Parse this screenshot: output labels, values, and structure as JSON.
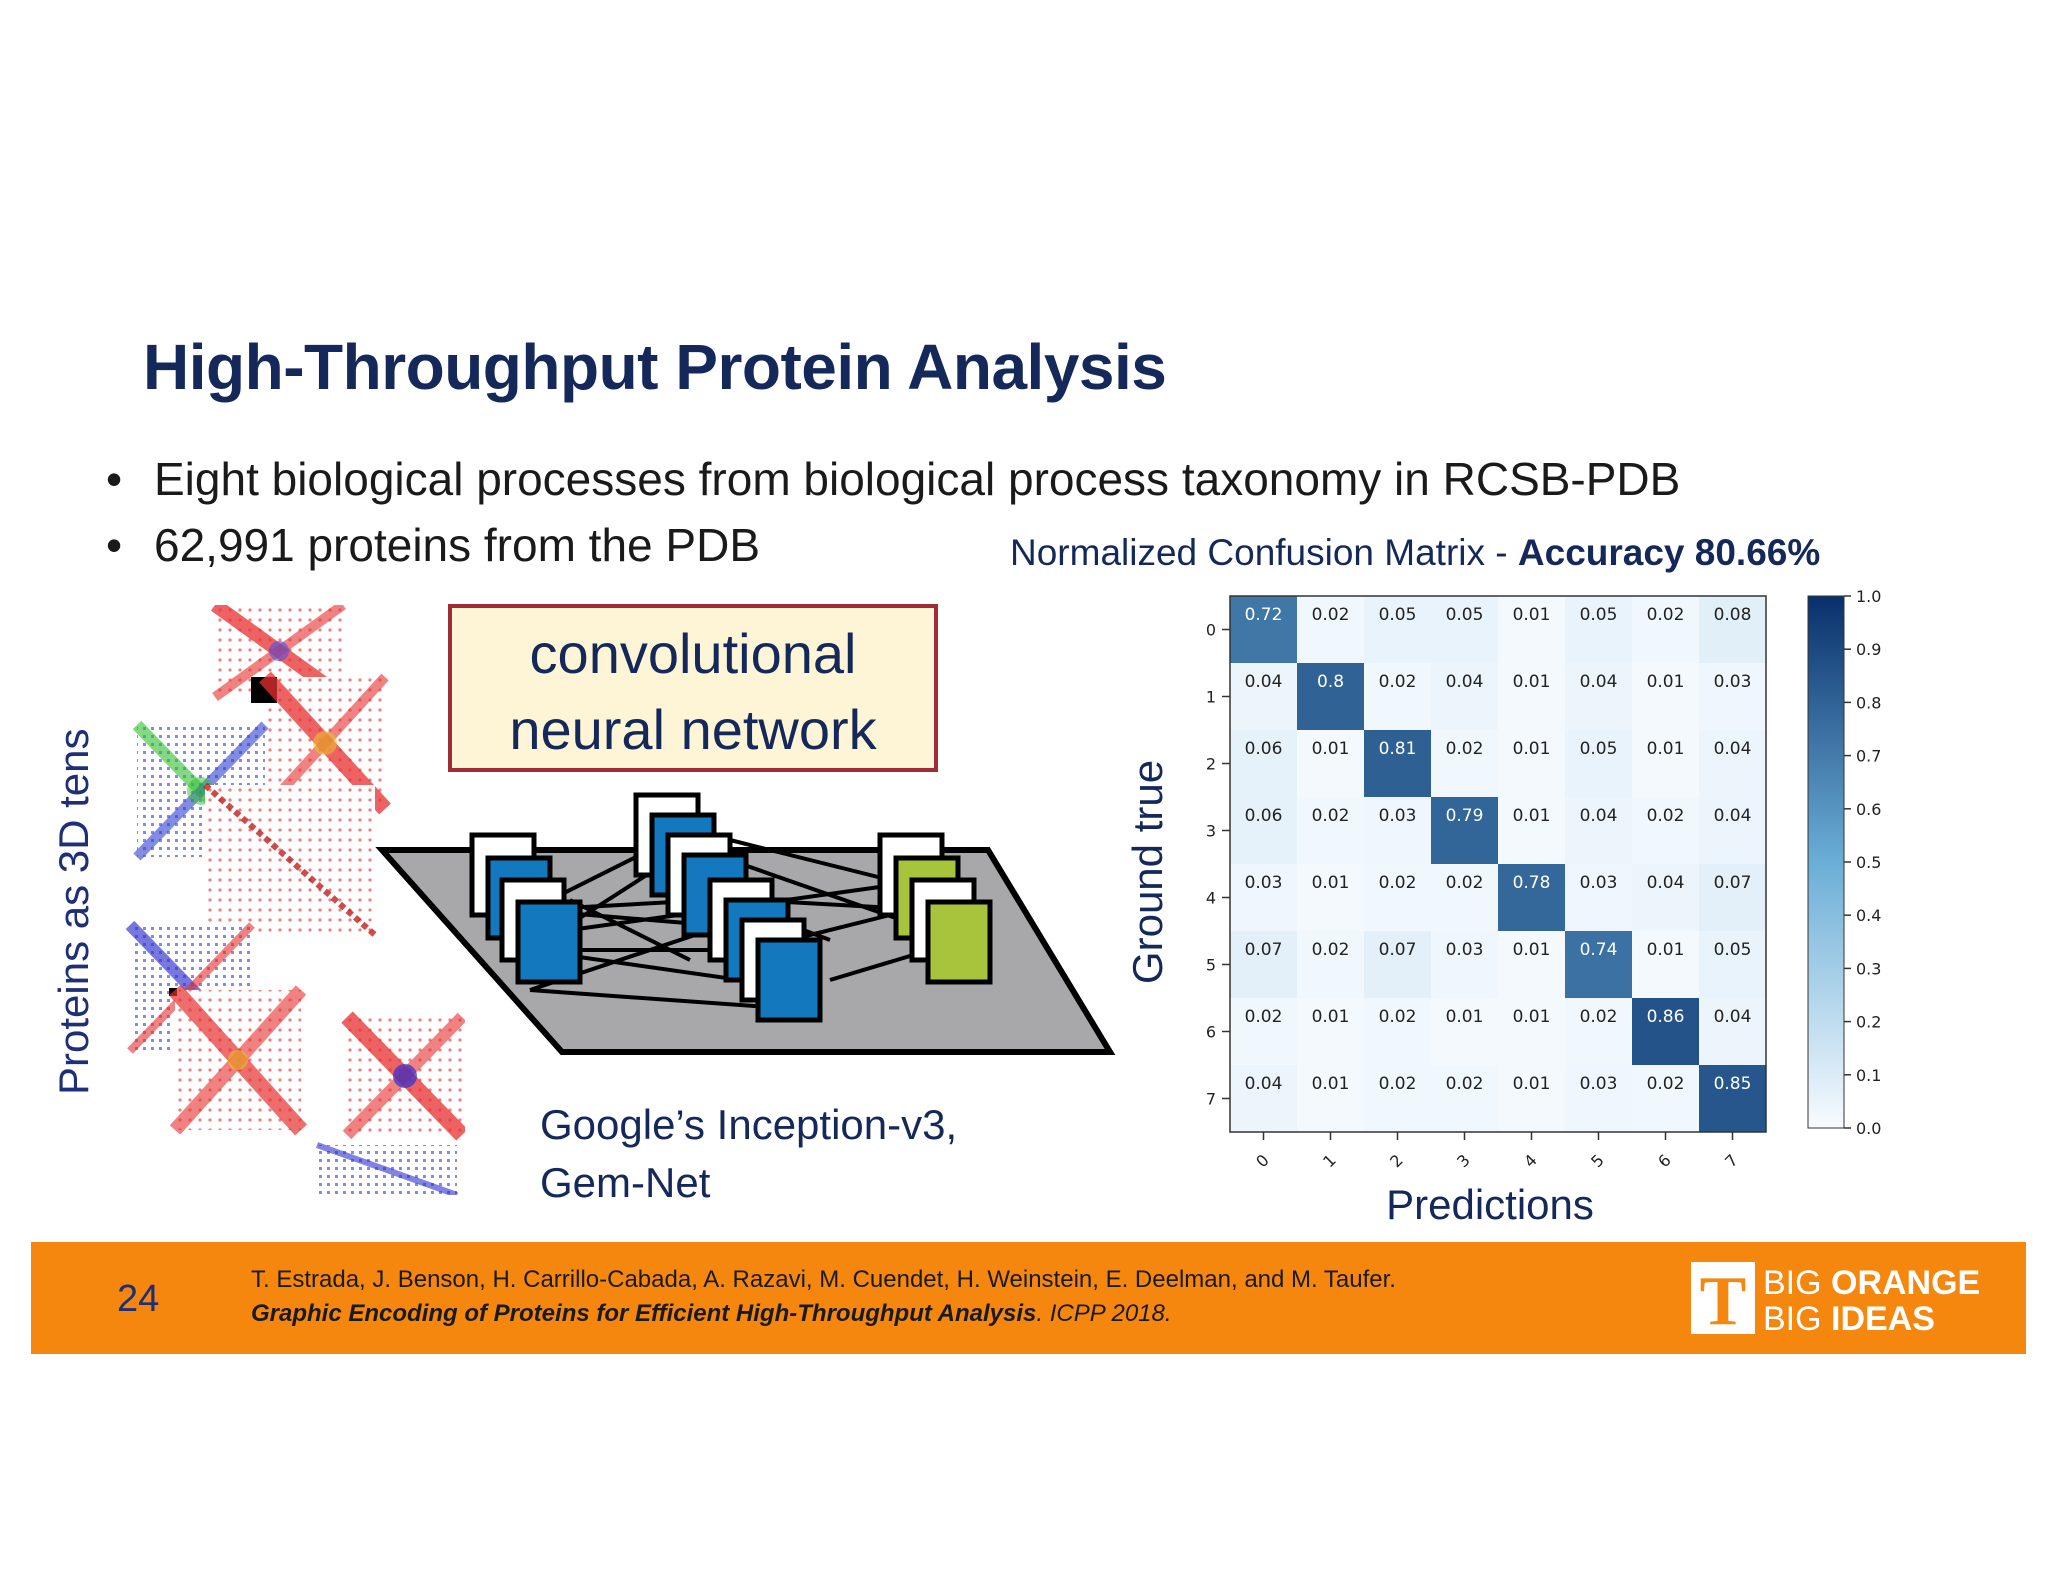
{
  "title": "High-Throughput Protein Analysis",
  "bullets": [
    "Eight biological processes from biological process taxonomy in RCSB-PDB",
    "62,991 proteins from the PDB"
  ],
  "bullet_symbol": "•",
  "side_label": "Proteins as 3D tens",
  "cnn_box": {
    "line1": "convolutional",
    "line2": "neural network"
  },
  "network_caption": {
    "line1": "Google’s Inception-v3,",
    "line2": "Gem-Net"
  },
  "confusion_caption": {
    "prefix": "Normalized Confusion Matrix - ",
    "accuracy": "Accuracy 80.66%"
  },
  "chart_data": {
    "type": "heatmap",
    "xlabel": "Predictions",
    "ylabel": "Ground true",
    "x_categories": [
      "0",
      "1",
      "2",
      "3",
      "4",
      "5",
      "6",
      "7"
    ],
    "y_categories": [
      "0",
      "1",
      "2",
      "3",
      "4",
      "5",
      "6",
      "7"
    ],
    "values": [
      [
        "0.72",
        "0.02",
        "0.05",
        "0.05",
        "0.01",
        "0.05",
        "0.02",
        "0.08"
      ],
      [
        "0.04",
        "0.8",
        "0.02",
        "0.04",
        "0.01",
        "0.04",
        "0.01",
        "0.03"
      ],
      [
        "0.06",
        "0.01",
        "0.81",
        "0.02",
        "0.01",
        "0.05",
        "0.01",
        "0.04"
      ],
      [
        "0.06",
        "0.02",
        "0.03",
        "0.79",
        "0.01",
        "0.04",
        "0.02",
        "0.04"
      ],
      [
        "0.03",
        "0.01",
        "0.02",
        "0.02",
        "0.78",
        "0.03",
        "0.04",
        "0.07"
      ],
      [
        "0.07",
        "0.02",
        "0.07",
        "0.03",
        "0.01",
        "0.74",
        "0.01",
        "0.05"
      ],
      [
        "0.02",
        "0.01",
        "0.02",
        "0.01",
        "0.01",
        "0.02",
        "0.86",
        "0.04"
      ],
      [
        "0.04",
        "0.01",
        "0.02",
        "0.02",
        "0.01",
        "0.03",
        "0.02",
        "0.85"
      ]
    ],
    "colorbar_ticks": [
      "0.0",
      "0.1",
      "0.2",
      "0.3",
      "0.4",
      "0.5",
      "0.6",
      "0.7",
      "0.8",
      "0.9",
      "1.0"
    ],
    "colorbar_range": [
      0,
      1
    ],
    "colormap": [
      "#f7fbff",
      "#08306b"
    ]
  },
  "footer": {
    "page_number": "24",
    "authors": "T. Estrada, J. Benson, H. Carrillo-Cabada, A. Razavi, M. Cuendet, H. Weinstein, E. Deelman, and M. Taufer.",
    "paper_title": "Graphic Encoding of Proteins for Efficient High-Throughput Analysis",
    "venue": ". ICPP 2018.",
    "logo": {
      "letter": "T",
      "top_left": "BIG",
      "top_right": "ORANGE",
      "bottom_left": "BIG",
      "bottom_right": "IDEAS"
    }
  },
  "colors": {
    "title": "#14285a",
    "footer_bg": "#f5870f",
    "box_border": "#a02c38",
    "box_fill": "#fdf5d6",
    "cnn_blue": "#1478be",
    "cnn_green": "#a8c43c"
  }
}
